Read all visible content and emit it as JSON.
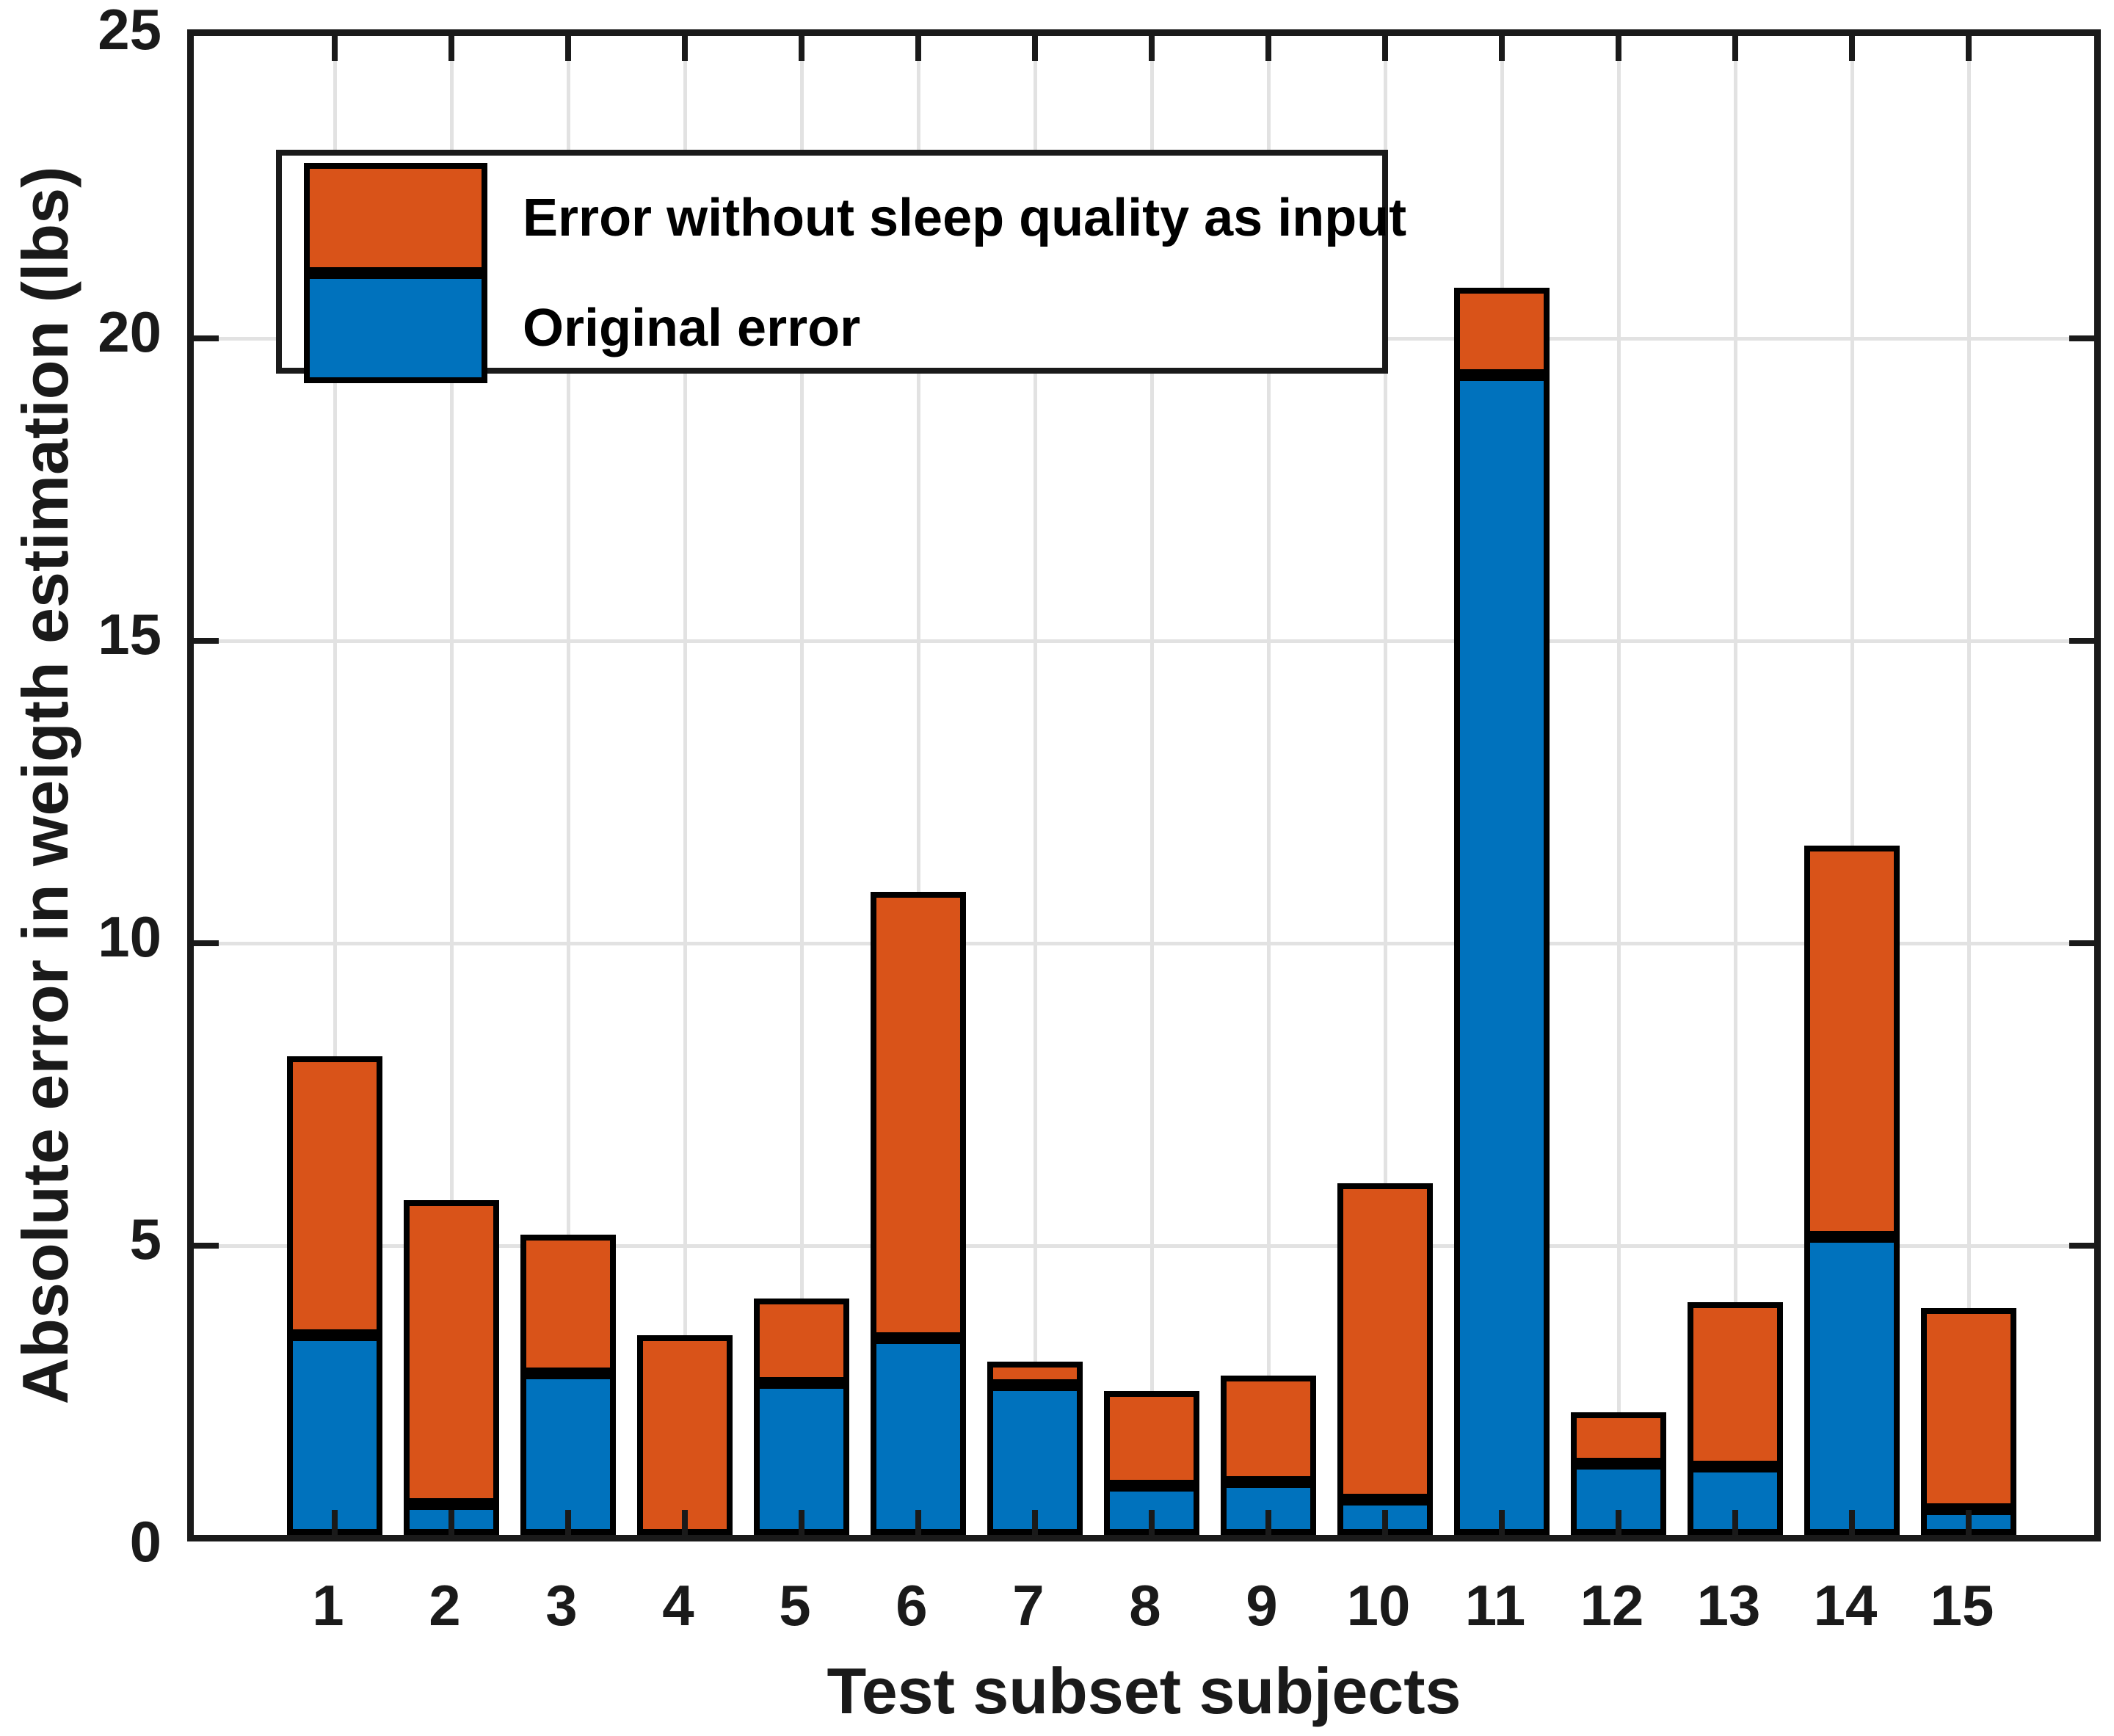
{
  "figure": {
    "background": "#ffffff",
    "axis_color": "#1a1a1a",
    "grid_color": "#e2e2e2",
    "bar_edge_color": "#000000"
  },
  "chart_data": {
    "type": "bar",
    "stacked": true,
    "title": "",
    "xlabel": "Test subset subjects",
    "ylabel": "Absolute error in weigth estimation (lbs)",
    "categories": [
      "1",
      "2",
      "3",
      "4",
      "5",
      "6",
      "7",
      "8",
      "9",
      "10",
      "11",
      "12",
      "13",
      "14",
      "15"
    ],
    "series": [
      {
        "name": "Original error",
        "color": "#0072BD",
        "values": [
          3.3,
          0.51,
          2.67,
          0.0,
          2.51,
          3.25,
          2.48,
          0.81,
          0.87,
          0.58,
          19.17,
          1.18,
          1.13,
          4.93,
          0.42
        ]
      },
      {
        "name": "Error without sleep quality as input",
        "color": "#D95319",
        "values": [
          4.56,
          4.98,
          2.24,
          3.3,
          1.35,
          7.33,
          0.34,
          1.52,
          1.72,
          5.18,
          1.4,
          0.8,
          2.67,
          6.42,
          3.28
        ]
      }
    ],
    "stack_totals": [
      7.86,
      5.49,
      4.91,
      3.3,
      3.86,
      10.58,
      2.82,
      2.33,
      2.59,
      5.76,
      20.57,
      1.98,
      3.8,
      11.35,
      3.7
    ],
    "ylim": [
      0,
      25
    ],
    "yticks": [
      "0",
      "5",
      "10",
      "15",
      "20",
      "25"
    ],
    "grid": true,
    "legend_position": "top-left"
  },
  "legend": {
    "items": [
      {
        "label": "Error without sleep quality as input",
        "color": "#D95319"
      },
      {
        "label": "Original error",
        "color": "#0072BD"
      }
    ]
  }
}
